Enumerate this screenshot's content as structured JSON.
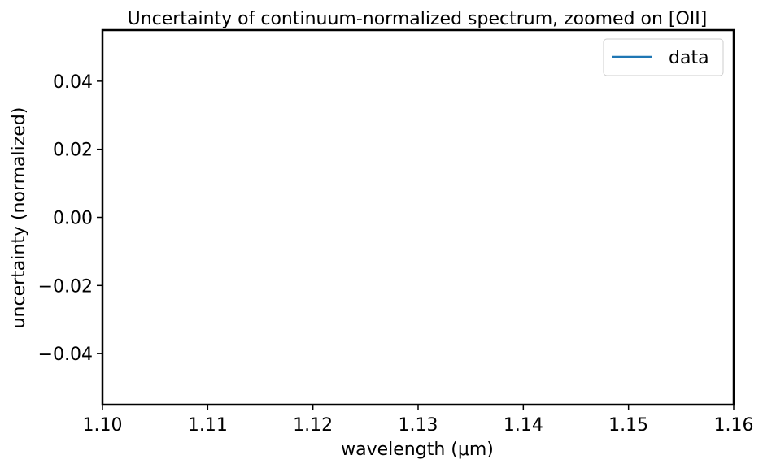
{
  "chart_data": {
    "type": "line",
    "title": "Uncertainty of continuum-normalized spectrum, zoomed on [OII]",
    "xlabel": "wavelength (μm)",
    "ylabel": "uncertainty (normalized)",
    "xlim": [
      1.1,
      1.16
    ],
    "ylim": [
      -0.055,
      0.055
    ],
    "xticks": [
      1.1,
      1.11,
      1.12,
      1.13,
      1.14,
      1.15,
      1.16
    ],
    "xtick_labels": [
      "1.10",
      "1.11",
      "1.12",
      "1.13",
      "1.14",
      "1.15",
      "1.16"
    ],
    "yticks": [
      0.04,
      0.02,
      0.0,
      -0.02,
      -0.04
    ],
    "ytick_labels": [
      "0.04",
      "0.02",
      "0.00",
      "−0.02",
      "−0.04"
    ],
    "grid": false,
    "legend": {
      "placement": "top-right",
      "entries": [
        "data"
      ]
    },
    "series": [
      {
        "name": "data",
        "color": "#1f77b4",
        "x": [],
        "y": []
      }
    ]
  }
}
